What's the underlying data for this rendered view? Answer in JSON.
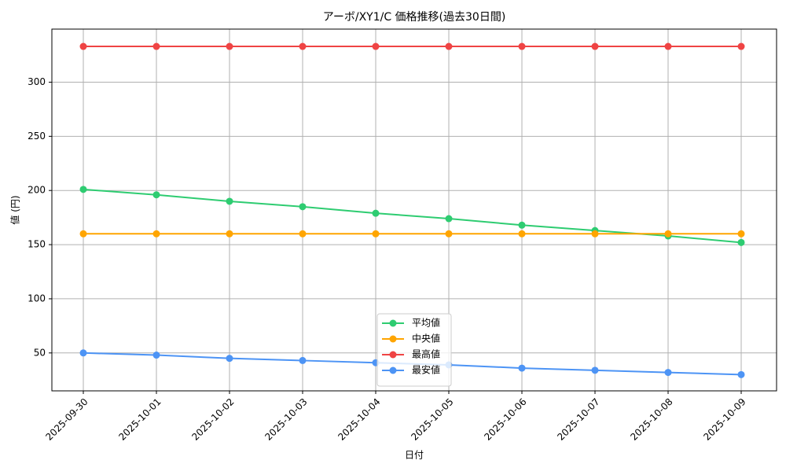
{
  "chart_data": {
    "type": "line",
    "title": "アーボ/XY1/C 価格推移(過去30日間)",
    "x_label": "日付",
    "y_label": "値 (円)",
    "categories": [
      "2025-09-30",
      "2025-10-01",
      "2025-10-02",
      "2025-10-03",
      "2025-10-04",
      "2025-10-05",
      "2025-10-06",
      "2025-10-07",
      "2025-10-08",
      "2025-10-09"
    ],
    "series": [
      {
        "name": "平均値",
        "color": "#2ecc71",
        "values": [
          201,
          196,
          190,
          185,
          179,
          174,
          168,
          163,
          158,
          152
        ]
      },
      {
        "name": "中央値",
        "color": "#ffa500",
        "values": [
          160,
          160,
          160,
          160,
          160,
          160,
          160,
          160,
          160,
          160
        ]
      },
      {
        "name": "最高値",
        "color": "#ef4444",
        "values": [
          333,
          333,
          333,
          333,
          333,
          333,
          333,
          333,
          333,
          333
        ]
      },
      {
        "name": "最安値",
        "color": "#4d94f5",
        "values": [
          50,
          48,
          45,
          43,
          41,
          39,
          36,
          34,
          32,
          30
        ]
      }
    ],
    "ylim": [
      15,
      349
    ],
    "yticks": [
      50,
      100,
      150,
      200,
      250,
      300
    ],
    "grid": true,
    "legend": "lower center"
  }
}
